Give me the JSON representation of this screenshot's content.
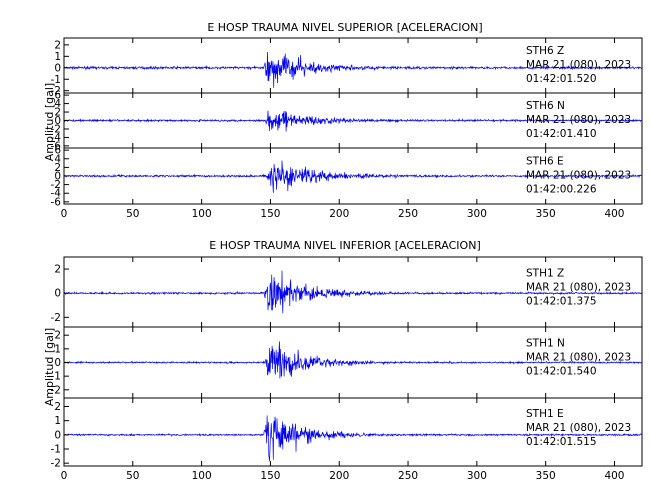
{
  "chart_data": [
    {
      "type": "line",
      "title": "E HOSP TRAUMA NIVEL SUPERIOR [ACELERACION]",
      "ylabel": "Amplitud [gal]",
      "xlabel": "",
      "xlim": [
        0,
        420
      ],
      "xticks": [
        "0",
        "50",
        "100",
        "150",
        "200",
        "250",
        "300",
        "350",
        "400"
      ],
      "trace_color": "#0000ee",
      "panels": [
        {
          "name": "STH6 Z",
          "station": "STH6",
          "component": "Z",
          "date": "MAR 21 (080), 2023",
          "time": "01:42:01.520",
          "ylim": [
            -2.2,
            2.6
          ],
          "yticks": [
            "-2",
            "-1",
            "0",
            "1",
            "2"
          ],
          "noise": 0.07,
          "onset": 145,
          "peak": 2.3,
          "decay": 28
        },
        {
          "name": "STH6 N",
          "station": "STH6",
          "component": "N",
          "date": "MAR 21 (080), 2023",
          "time": "01:42:01.410",
          "ylim": [
            -6.5,
            6.5
          ],
          "yticks": [
            "-6",
            "-4",
            "-2",
            "0",
            "2",
            "4",
            "6"
          ],
          "noise": 0.15,
          "onset": 146,
          "peak": 4.0,
          "decay": 30
        },
        {
          "name": "STH6 E",
          "station": "STH6",
          "component": "E",
          "date": "MAR 21 (080), 2023",
          "time": "01:42:00.226",
          "ylim": [
            -6.5,
            6.5
          ],
          "yticks": [
            "-6",
            "-4",
            "-2",
            "0",
            "2",
            "4",
            "6"
          ],
          "noise": 0.15,
          "onset": 147,
          "peak": 5.0,
          "decay": 32
        }
      ]
    },
    {
      "type": "line",
      "title": "E HOSP TRAUMA NIVEL INFERIOR [ACELERACION]",
      "ylabel": "Amplitud [gal]",
      "xlabel": "",
      "xlim": [
        0,
        420
      ],
      "xticks": [
        "0",
        "50",
        "100",
        "150",
        "200",
        "250",
        "300",
        "350",
        "400"
      ],
      "trace_color": "#0000ee",
      "panels": [
        {
          "name": "STH1 Z",
          "station": "STH1",
          "component": "Z",
          "date": "MAR 21 (080), 2023",
          "time": "01:42:01.375",
          "ylim": [
            -2.8,
            3.0
          ],
          "yticks": [
            "-2",
            "0",
            "2"
          ],
          "noise": 0.05,
          "onset": 145,
          "peak": 2.7,
          "decay": 26
        },
        {
          "name": "STH1 N",
          "station": "STH1",
          "component": "N",
          "date": "MAR 21 (080), 2023",
          "time": "01:42:01.540",
          "ylim": [
            -2.6,
            2.6
          ],
          "yticks": [
            "-2",
            "-1",
            "0",
            "1",
            "2"
          ],
          "noise": 0.04,
          "onset": 146,
          "peak": 2.3,
          "decay": 26
        },
        {
          "name": "STH1 E",
          "station": "STH1",
          "component": "E",
          "date": "MAR 21 (080), 2023",
          "time": "01:42:01.515",
          "ylim": [
            -2.2,
            2.6
          ],
          "yticks": [
            "-2",
            "-1",
            "0",
            "1",
            "2"
          ],
          "noise": 0.04,
          "onset": 145,
          "peak": 2.4,
          "decay": 24
        }
      ]
    }
  ]
}
